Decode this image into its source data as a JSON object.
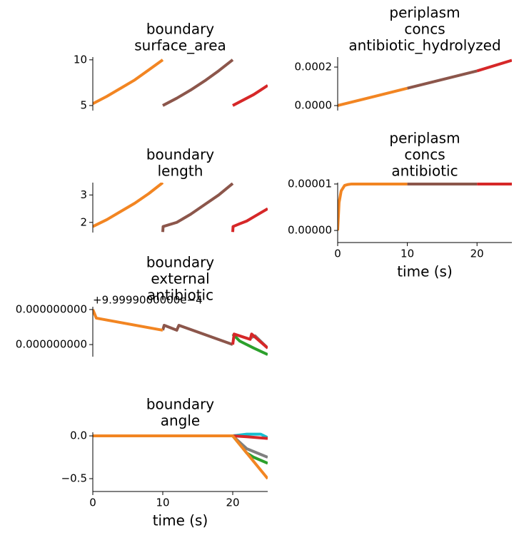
{
  "chart_data": [
    {
      "type": "line",
      "title": [
        "boundary",
        "surface_area"
      ],
      "xlim": [
        0,
        25
      ],
      "ylim": [
        4.45,
        10.3
      ],
      "yticks": [
        5,
        10
      ],
      "series": [
        {
          "color": "#f28522",
          "x": [
            0,
            2,
            4,
            6,
            8,
            10
          ],
          "values": [
            5.2,
            6.0,
            6.9,
            7.8,
            8.9,
            10.0
          ]
        },
        {
          "color": "#8c564b",
          "x": [
            10,
            12,
            14,
            16,
            18,
            20
          ],
          "values": [
            5.0,
            5.8,
            6.7,
            7.7,
            8.8,
            10.0
          ]
        },
        {
          "color": "#d62728",
          "x": [
            20,
            21,
            22,
            23,
            24,
            25
          ],
          "values": [
            5.0,
            5.4,
            5.8,
            6.2,
            6.7,
            7.2
          ]
        }
      ]
    },
    {
      "type": "line",
      "title": [
        "periplasm",
        "concs",
        "antibiotic_hydrolyzed"
      ],
      "xlim": [
        0,
        25
      ],
      "ylim": [
        -2.6e-05,
        0.000252
      ],
      "yticks": [
        {
          "value": 0.0002,
          "label": "0.0002"
        },
        {
          "value": 0,
          "label": "0.0000"
        }
      ],
      "series": [
        {
          "color": "#f28522",
          "x": [
            0,
            10
          ],
          "values": [
            0,
            9e-05
          ]
        },
        {
          "color": "#8c564b",
          "x": [
            10,
            20
          ],
          "values": [
            9e-05,
            0.00018
          ]
        },
        {
          "color": "#d62728",
          "x": [
            20,
            25
          ],
          "values": [
            0.00018,
            0.000235
          ]
        }
      ]
    },
    {
      "type": "line",
      "title": [
        "boundary",
        "length"
      ],
      "xlim": [
        0,
        25
      ],
      "ylim": [
        1.63,
        3.45
      ],
      "yticks": [
        3,
        2
      ],
      "series": [
        {
          "color": "#f28522",
          "x": [
            0,
            2,
            4,
            6,
            8,
            10
          ],
          "values": [
            1.85,
            2.1,
            2.4,
            2.7,
            3.05,
            3.45
          ]
        },
        {
          "color": "#8c564b",
          "x": [
            10,
            10.05,
            12,
            14,
            16,
            18,
            20
          ],
          "values": [
            1.65,
            1.85,
            2.0,
            2.3,
            2.65,
            3.0,
            3.42
          ]
        },
        {
          "color": "#d62728",
          "x": [
            20,
            20.05,
            21,
            22,
            23,
            24,
            25
          ],
          "values": [
            1.65,
            1.85,
            1.95,
            2.05,
            2.2,
            2.35,
            2.5
          ]
        }
      ]
    },
    {
      "type": "line",
      "title": [
        "periplasm",
        "concs",
        "antibiotic"
      ],
      "xlim": [
        0,
        25
      ],
      "ylim": [
        -2.6e-06,
        1.03e-05
      ],
      "yticks": [
        {
          "value": 1e-05,
          "label": "0.00001"
        },
        {
          "value": 0,
          "label": "0.00000"
        }
      ],
      "xticks": [
        0,
        10,
        20
      ],
      "xlabel": "time (s)",
      "series": [
        {
          "color": "#f28522",
          "x": [
            0,
            0.2,
            0.5,
            1,
            1.5,
            2,
            10
          ],
          "values": [
            0,
            6e-06,
            8.5e-06,
            9.7e-06,
            9.9e-06,
            1e-05,
            1e-05
          ]
        },
        {
          "color": "#8c564b",
          "x": [
            10,
            20
          ],
          "values": [
            1e-05,
            1e-05
          ]
        },
        {
          "color": "#d62728",
          "x": [
            20,
            25
          ],
          "values": [
            1e-05,
            1e-05
          ]
        }
      ]
    },
    {
      "type": "line",
      "title": [
        "boundary",
        "external",
        "antibiotic"
      ],
      "offset_text": "+9.9999000000e−4",
      "xlim": [
        0,
        25
      ],
      "ylim": [
        -2.69e-11,
        1.6e-12
      ],
      "yticks": [
        {
          "value": 0,
          "label": "0.000000000"
        },
        {
          "value": -2e-11,
          "label": "0.000000000"
        }
      ],
      "series": [
        {
          "color": "#2ca02c",
          "x": [
            20,
            21,
            23,
            25
          ],
          "values": [
            -1.4e-11,
            -1.8e-11,
            -2.2e-11,
            -2.57e-11
          ]
        },
        {
          "color": "#7f7f7f",
          "x": [
            22.7,
            23.2,
            25
          ],
          "values": [
            -1.6e-11,
            -1.5e-11,
            -2.2e-11
          ]
        },
        {
          "color": "#8c564b",
          "x": [
            10,
            10.2,
            12,
            12.3,
            20
          ],
          "values": [
            -1.18e-11,
            -9e-12,
            -1.18e-11,
            -9e-12,
            -2e-11
          ]
        },
        {
          "color": "#d62728",
          "x": [
            20,
            20.2,
            22.5,
            22.7,
            25
          ],
          "values": [
            -2e-11,
            -1.4e-11,
            -1.7e-11,
            -1.4e-11,
            -2.2e-11
          ]
        },
        {
          "color": "#f28522",
          "x": [
            0,
            0.5,
            10
          ],
          "values": [
            0,
            -4.9e-12,
            -1.18e-11
          ]
        }
      ]
    },
    {
      "type": "line",
      "title": [
        "boundary",
        "angle"
      ],
      "xlim": [
        0,
        25
      ],
      "ylim": [
        -0.65,
        0.042
      ],
      "yticks": [
        {
          "value": 0,
          "label": "0.0"
        },
        {
          "value": -0.5,
          "label": "−0.5"
        }
      ],
      "xticks": [
        0,
        10,
        20
      ],
      "xlabel": "time (s)",
      "series": [
        {
          "color": "#8c564b",
          "x": [
            10,
            15,
            20
          ],
          "values": [
            0,
            0,
            0
          ]
        },
        {
          "color": "#17becf",
          "x": [
            20,
            22,
            24,
            25
          ],
          "values": [
            0,
            0.02,
            0.02,
            -0.02
          ]
        },
        {
          "color": "#7f7f7f",
          "x": [
            20,
            22,
            25
          ],
          "values": [
            0,
            -0.15,
            -0.25
          ]
        },
        {
          "color": "#2ca02c",
          "x": [
            20,
            21,
            22,
            23,
            25
          ],
          "values": [
            0,
            -0.1,
            -0.2,
            -0.25,
            -0.32
          ]
        },
        {
          "color": "#d62728",
          "x": [
            20,
            22,
            25
          ],
          "values": [
            0,
            -0.01,
            -0.03
          ]
        },
        {
          "color": "#f28522",
          "x": [
            0,
            5,
            10,
            15,
            20,
            21,
            25
          ],
          "values": [
            0,
            0,
            0,
            0,
            0,
            -0.1,
            -0.5
          ]
        }
      ]
    }
  ]
}
